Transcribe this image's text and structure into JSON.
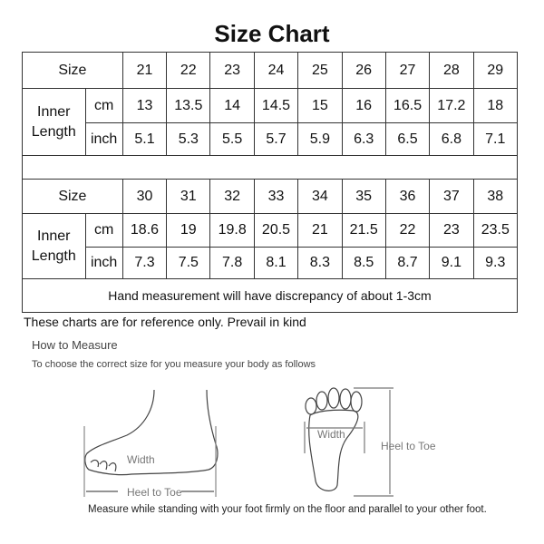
{
  "title": "Size Chart",
  "tables": [
    {
      "size_label": "Size",
      "inner_label": "Inner Length",
      "cm_label": "cm",
      "inch_label": "inch",
      "sizes": [
        "21",
        "22",
        "23",
        "24",
        "25",
        "26",
        "27",
        "28",
        "29"
      ],
      "cm": [
        "13",
        "13.5",
        "14",
        "14.5",
        "15",
        "16",
        "16.5",
        "17.2",
        "18"
      ],
      "inch": [
        "5.1",
        "5.3",
        "5.5",
        "5.7",
        "5.9",
        "6.3",
        "6.5",
        "6.8",
        "7.1"
      ]
    },
    {
      "size_label": "Size",
      "inner_label": "Inner Length",
      "cm_label": "cm",
      "inch_label": "inch",
      "sizes": [
        "30",
        "31",
        "32",
        "33",
        "34",
        "35",
        "36",
        "37",
        "38"
      ],
      "cm": [
        "18.6",
        "19",
        "19.8",
        "20.5",
        "21",
        "21.5",
        "22",
        "23",
        "23.5"
      ],
      "inch": [
        "7.3",
        "7.5",
        "7.8",
        "8.1",
        "8.3",
        "8.5",
        "8.7",
        "9.1",
        "9.3"
      ]
    }
  ],
  "note": "Hand measurement will have discrepancy of about 1-3cm",
  "reference": "These charts are for reference only. Prevail in kind",
  "how_to": {
    "heading": "How to Measure",
    "subheading": "To choose the correct size for you measure your body as follows",
    "side_width": "Width",
    "side_heel_to_toe": "Heel to Toe",
    "top_width": "Width",
    "top_heel_to_toe": "Heel to Toe",
    "instruction": "Measure while standing with your foot firmly on the floor and parallel to your other foot."
  }
}
